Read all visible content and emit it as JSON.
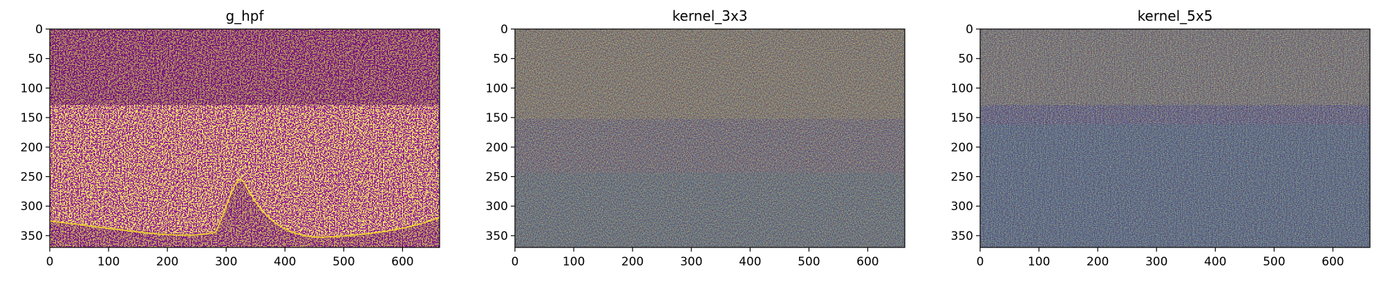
{
  "chart_data": [
    {
      "type": "heatmap",
      "title": "g_hpf",
      "xlabel": "",
      "ylabel": "",
      "x_ticks": [
        0,
        100,
        200,
        300,
        400,
        500,
        600
      ],
      "y_ticks": [
        0,
        50,
        100,
        150,
        200,
        250,
        300,
        350
      ],
      "xlim": [
        0,
        663
      ],
      "ylim": [
        370,
        0
      ],
      "grid": false,
      "colormap": "viridis"
    },
    {
      "type": "heatmap",
      "title": "kernel_3x3",
      "xlabel": "",
      "ylabel": "",
      "x_ticks": [
        0,
        100,
        200,
        300,
        400,
        500,
        600
      ],
      "y_ticks": [
        0,
        50,
        100,
        150,
        200,
        250,
        300,
        350
      ],
      "xlim": [
        0,
        663
      ],
      "ylim": [
        370,
        0
      ],
      "grid": false,
      "colormap": "viridis"
    },
    {
      "type": "heatmap",
      "title": "kernel_5x5",
      "xlabel": "",
      "ylabel": "",
      "x_ticks": [
        0,
        100,
        200,
        300,
        400,
        500,
        600
      ],
      "y_ticks": [
        0,
        50,
        100,
        150,
        200,
        250,
        300,
        350
      ],
      "xlim": [
        0,
        663
      ],
      "ylim": [
        370,
        0
      ],
      "grid": false,
      "colormap": "viridis"
    }
  ],
  "colors": {
    "low": "#440154",
    "mid": "#3b8f8c",
    "mid_light": "#5ec962",
    "high": "#fde725"
  }
}
